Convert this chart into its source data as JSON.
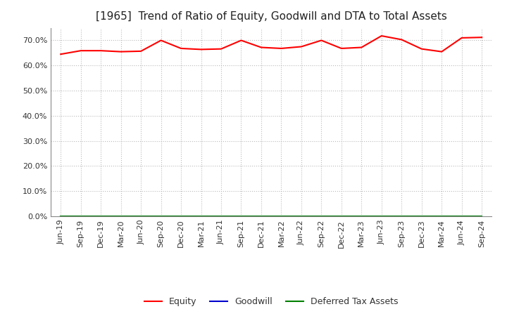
{
  "title": "[1965]  Trend of Ratio of Equity, Goodwill and DTA to Total Assets",
  "x_labels": [
    "Jun-19",
    "Sep-19",
    "Dec-19",
    "Mar-20",
    "Jun-20",
    "Sep-20",
    "Dec-20",
    "Mar-21",
    "Jun-21",
    "Sep-21",
    "Dec-21",
    "Mar-22",
    "Jun-22",
    "Sep-22",
    "Dec-22",
    "Mar-23",
    "Jun-23",
    "Sep-23",
    "Dec-23",
    "Mar-24",
    "Jun-24",
    "Sep-24"
  ],
  "equity": [
    0.645,
    0.659,
    0.659,
    0.655,
    0.657,
    0.7,
    0.668,
    0.664,
    0.666,
    0.7,
    0.672,
    0.668,
    0.675,
    0.7,
    0.668,
    0.672,
    0.718,
    0.703,
    0.666,
    0.655,
    0.71,
    0.712
  ],
  "goodwill": [
    0.0,
    0.0,
    0.0,
    0.0,
    0.0,
    0.0,
    0.0,
    0.0,
    0.0,
    0.0,
    0.0,
    0.0,
    0.0,
    0.0,
    0.0,
    0.0,
    0.0,
    0.0,
    0.0,
    0.0,
    0.0,
    0.0
  ],
  "dta": [
    0.0,
    0.0,
    0.0,
    0.0,
    0.0,
    0.0,
    0.0,
    0.0,
    0.0,
    0.0,
    0.0,
    0.0,
    0.0,
    0.0,
    0.0,
    0.0,
    0.0,
    0.0,
    0.0,
    0.0,
    0.0,
    0.0
  ],
  "equity_color": "#ff0000",
  "goodwill_color": "#0000cd",
  "dta_color": "#008000",
  "ylim_min": 0.0,
  "ylim_max": 0.75,
  "yticks": [
    0.0,
    0.1,
    0.2,
    0.3,
    0.4,
    0.5,
    0.6,
    0.7
  ],
  "background_color": "#ffffff",
  "plot_bg_color": "#ffffff",
  "grid_color": "#bbbbbb",
  "title_fontsize": 11,
  "axis_fontsize": 8,
  "legend_fontsize": 9,
  "legend_labels": [
    "Equity",
    "Goodwill",
    "Deferred Tax Assets"
  ]
}
